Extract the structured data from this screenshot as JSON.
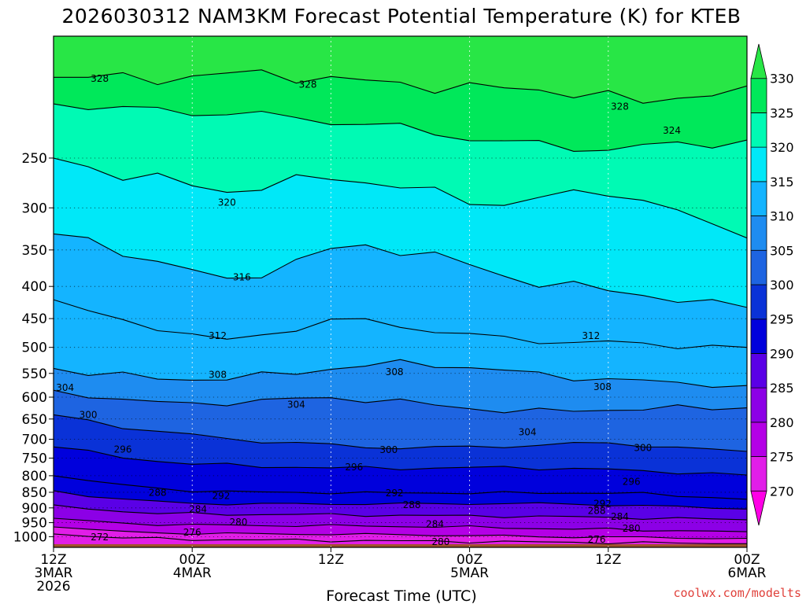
{
  "chart_data": {
    "type": "heatmap",
    "title": "2026030312 NAM3KM Forecast Potential Temperature (K) for KTEB",
    "xlabel": "Forecast Time (UTC)",
    "ylabel": "",
    "credit": "coolwx.com/modelts",
    "x_range_hours": [
      0,
      60
    ],
    "y_axis": {
      "type": "pressure",
      "units": "hPa",
      "range": [
        1040,
        160
      ],
      "scale": "log"
    },
    "x_ticks": [
      {
        "hour": 0,
        "lines": [
          "12Z",
          "3MAR",
          "2026"
        ]
      },
      {
        "hour": 12,
        "lines": [
          "00Z",
          "4MAR"
        ]
      },
      {
        "hour": 24,
        "lines": [
          "12Z"
        ]
      },
      {
        "hour": 36,
        "lines": [
          "00Z",
          "5MAR"
        ]
      },
      {
        "hour": 48,
        "lines": [
          "12Z"
        ]
      },
      {
        "hour": 60,
        "lines": [
          "00Z",
          "6MAR"
        ]
      }
    ],
    "y_ticks": [
      250,
      300,
      350,
      400,
      450,
      500,
      550,
      600,
      650,
      700,
      750,
      800,
      850,
      900,
      950,
      1000
    ],
    "colorbar": {
      "levels": [
        270,
        275,
        280,
        285,
        290,
        295,
        300,
        305,
        310,
        315,
        320,
        325,
        330
      ],
      "colors": [
        "#ff00e6",
        "#e11ee8",
        "#b400e6",
        "#8c00e6",
        "#5a00e6",
        "#0000dc",
        "#0a32d7",
        "#1e64e1",
        "#1e8cf0",
        "#14b4ff",
        "#00e8f8",
        "#00fab4",
        "#00e85a",
        "#28e646"
      ]
    },
    "contour_interval": 4,
    "contour_levels": [
      272,
      276,
      280,
      284,
      288,
      292,
      296,
      300,
      304,
      308,
      312,
      316,
      320,
      324,
      328
    ],
    "ground_color": "#a0522d",
    "times_hours": [
      0,
      3,
      6,
      9,
      12,
      15,
      18,
      21,
      24,
      27,
      30,
      33,
      36,
      39,
      42,
      45,
      48,
      51,
      54,
      57,
      60
    ],
    "isentrope_pressure_hPa": {
      "328": [
        186,
        186,
        187,
        187,
        185,
        184,
        184,
        185,
        187,
        189,
        191,
        192,
        193,
        194,
        195,
        196,
        200,
        204,
        200,
        196,
        192
      ],
      "324": [
        205,
        207,
        209,
        210,
        211,
        212,
        214,
        216,
        218,
        221,
        224,
        228,
        232,
        236,
        238,
        240,
        242,
        240,
        238,
        236,
        234
      ],
      "320": [
        250,
        258,
        266,
        270,
        276,
        282,
        278,
        272,
        268,
        272,
        278,
        284,
        292,
        296,
        290,
        285,
        282,
        292,
        305,
        320,
        335
      ],
      "316": [
        330,
        340,
        352,
        365,
        378,
        392,
        380,
        365,
        350,
        345,
        350,
        358,
        370,
        385,
        395,
        400,
        405,
        412,
        420,
        428,
        432
      ],
      "312": [
        420,
        440,
        455,
        465,
        475,
        490,
        478,
        466,
        452,
        455,
        462,
        470,
        478,
        484,
        488,
        490,
        492,
        494,
        496,
        498,
        500
      ],
      "308": [
        540,
        548,
        555,
        560,
        562,
        560,
        555,
        548,
        540,
        535,
        530,
        532,
        538,
        545,
        552,
        558,
        562,
        566,
        570,
        572,
        575
      ],
      "304": [
        585,
        595,
        605,
        612,
        615,
        612,
        608,
        604,
        602,
        605,
        610,
        618,
        625,
        630,
        632,
        630,
        628,
        626,
        625,
        624,
        624
      ],
      "300": [
        640,
        655,
        668,
        680,
        690,
        698,
        705,
        710,
        715,
        720,
        722,
        722,
        720,
        718,
        715,
        712,
        710,
        715,
        722,
        728,
        732
      ],
      "296": [
        720,
        735,
        748,
        758,
        765,
        770,
        773,
        775,
        777,
        778,
        778,
        778,
        777,
        776,
        778,
        780,
        782,
        786,
        790,
        794,
        798
      ],
      "292": [
        800,
        815,
        828,
        838,
        845,
        848,
        850,
        850,
        851,
        852,
        852,
        852,
        852,
        852,
        852,
        852,
        852,
        855,
        860,
        866,
        872
      ],
      "288": [
        845,
        860,
        872,
        880,
        885,
        887,
        887,
        887,
        887,
        887,
        887,
        887,
        886,
        886,
        886,
        888,
        890,
        893,
        896,
        900,
        904
      ],
      "284": [
        890,
        902,
        912,
        918,
        920,
        921,
        922,
        922,
        923,
        924,
        925,
        926,
        927,
        928,
        929,
        930,
        932,
        934,
        936,
        938,
        940
      ],
      "280": [
        935,
        945,
        952,
        956,
        958,
        959,
        960,
        960,
        961,
        962,
        963,
        964,
        966,
        968,
        970,
        972,
        974,
        976,
        978,
        980,
        982
      ],
      "276": [
        965,
        975,
        982,
        986,
        988,
        989,
        990,
        990,
        991,
        992,
        993,
        994,
        996,
        998,
        1000,
        1001,
        1002,
        1003,
        1004,
        1005,
        1006
      ],
      "272": [
        990,
        998,
        1004,
        1008,
        1010,
        1011,
        1012,
        1013,
        1014,
        1015,
        1016,
        1017,
        1018,
        1019,
        1020,
        1021,
        1022,
        1023,
        1024,
        1025,
        1026
      ]
    },
    "contour_labels": [
      {
        "value": "328",
        "hour": 4,
        "p": 187
      },
      {
        "value": "328",
        "hour": 22,
        "p": 191
      },
      {
        "value": "328",
        "hour": 49,
        "p": 207
      },
      {
        "value": "324",
        "hour": 53.5,
        "p": 226
      },
      {
        "value": "320",
        "hour": 15,
        "p": 294
      },
      {
        "value": "316",
        "hour": 16.3,
        "p": 387
      },
      {
        "value": "312",
        "hour": 14.2,
        "p": 479
      },
      {
        "value": "312",
        "hour": 46.5,
        "p": 479
      },
      {
        "value": "308",
        "hour": 14.2,
        "p": 553
      },
      {
        "value": "308",
        "hour": 29.5,
        "p": 547
      },
      {
        "value": "308",
        "hour": 47.5,
        "p": 578
      },
      {
        "value": "304",
        "hour": 1,
        "p": 580
      },
      {
        "value": "304",
        "hour": 21,
        "p": 617
      },
      {
        "value": "304",
        "hour": 41,
        "p": 682
      },
      {
        "value": "300",
        "hour": 3,
        "p": 640
      },
      {
        "value": "300",
        "hour": 29,
        "p": 728
      },
      {
        "value": "300",
        "hour": 51,
        "p": 722
      },
      {
        "value": "296",
        "hour": 6,
        "p": 727
      },
      {
        "value": "296",
        "hour": 26,
        "p": 775
      },
      {
        "value": "296",
        "hour": 50,
        "p": 818
      },
      {
        "value": "292",
        "hour": 14.5,
        "p": 861
      },
      {
        "value": "292",
        "hour": 29.5,
        "p": 852
      },
      {
        "value": "292",
        "hour": 47.5,
        "p": 887
      },
      {
        "value": "288",
        "hour": 9,
        "p": 851
      },
      {
        "value": "288",
        "hour": 31,
        "p": 890
      },
      {
        "value": "288",
        "hour": 47,
        "p": 910
      },
      {
        "value": "284",
        "hour": 12.5,
        "p": 905
      },
      {
        "value": "284",
        "hour": 33,
        "p": 955
      },
      {
        "value": "284",
        "hour": 49,
        "p": 930
      },
      {
        "value": "280",
        "hour": 16,
        "p": 948
      },
      {
        "value": "280",
        "hour": 33.5,
        "p": 1019
      },
      {
        "value": "280",
        "hour": 50,
        "p": 970
      },
      {
        "value": "276",
        "hour": 12,
        "p": 985
      },
      {
        "value": "276",
        "hour": 47,
        "p": 1010
      },
      {
        "value": "272",
        "hour": 4,
        "p": 1002
      }
    ]
  }
}
